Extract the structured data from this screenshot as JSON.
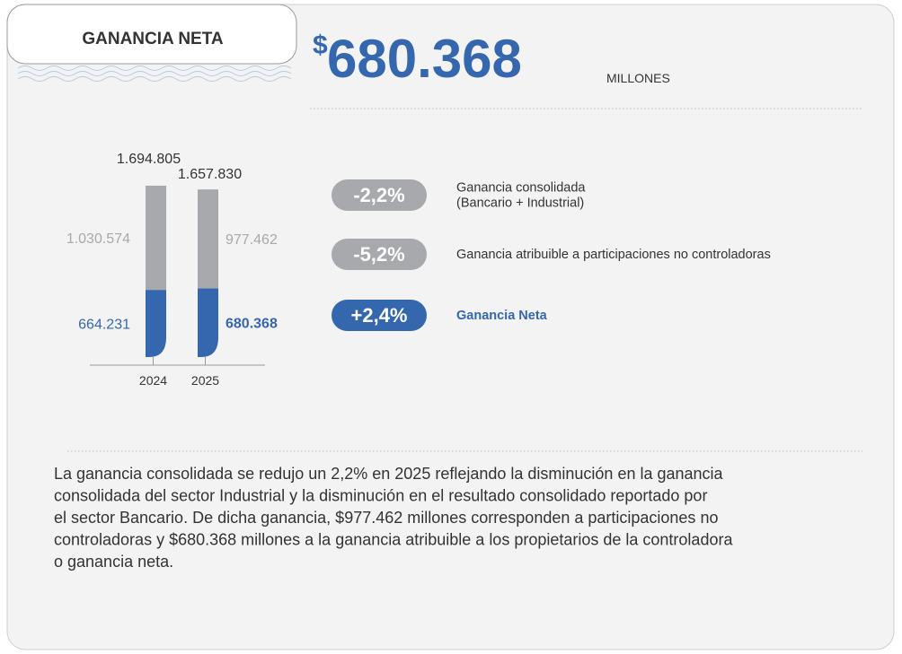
{
  "header": {
    "title": "GANANCIA NETA",
    "currency": "$",
    "amount": "680.368",
    "unit": "MILLONES"
  },
  "chart_data": {
    "type": "stacked_bar",
    "categories": [
      "2024",
      "2025"
    ],
    "series": [
      {
        "color": "#3567ae",
        "values": [
          664231,
          680368
        ],
        "value_labels": [
          "664.231",
          "680.368"
        ]
      },
      {
        "color": "#a7a9ac",
        "values": [
          1030574,
          977462
        ],
        "value_labels": [
          "1.030.574",
          "977.462"
        ]
      }
    ],
    "totals": [
      1694805,
      1657830
    ],
    "total_labels": [
      "1.694.805",
      "1.657.830"
    ]
  },
  "badges": [
    {
      "value": "-2,2%",
      "color": "#a7a9ac",
      "label": [
        "Ganancia consolidada",
        "(Bancario + Industrial)"
      ]
    },
    {
      "value": "-5,2%",
      "color": "#a7a9ac",
      "label": [
        "Ganancia atribuible a participaciones no controladoras"
      ]
    },
    {
      "value": "+2,4%",
      "color": "#3567ae",
      "label": [
        "Ganancia Neta"
      ]
    }
  ],
  "text": [
    "La ganancia consolidada se redujo un 2,2% en 2025 reflejando la disminución en la ganancia",
    "consolidada del sector Industrial y la disminución en el resultado consolidado reportado por",
    "el sector Bancario. De dicha ganancia, $977.462 millones corresponden a participaciones no",
    "controladoras y $680.368 millones a la ganancia atribuible a los propietarios de la controladora",
    "o ganancia neta."
  ]
}
